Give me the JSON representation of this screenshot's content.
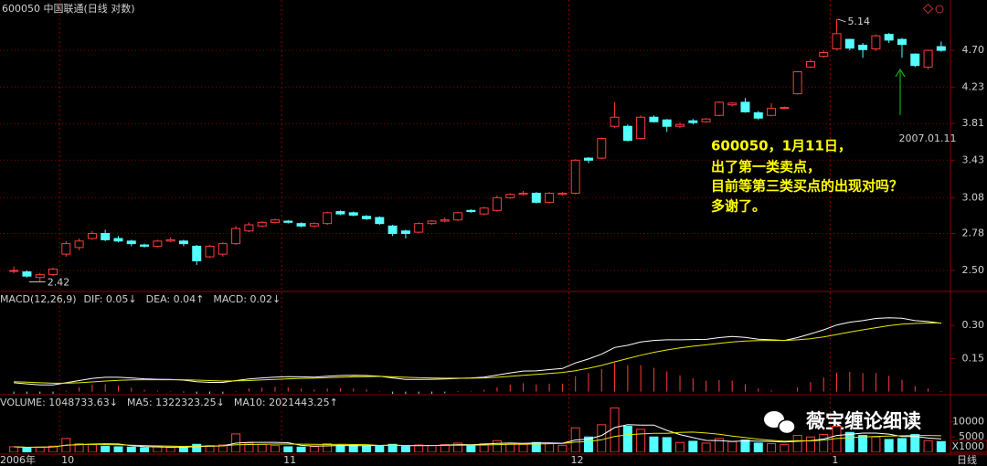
{
  "title": "600050 中国联通(日线 对数)",
  "period_label": "日线",
  "watermark": "薇宝缠论细读",
  "note": [
    "600050，1月11日，",
    "出了第一类卖点，",
    "目前等第三类买点的出现对吗？",
    "多谢了。"
  ],
  "chart_data": [
    {
      "type": "candlestick",
      "log_scale": true,
      "grid": true,
      "up_color": "#ff3c3c",
      "down_color": "#54ffff",
      "categories": [
        "2006年",
        null,
        null,
        null,
        "10",
        null,
        null,
        null,
        null,
        null,
        null,
        null,
        null,
        null,
        null,
        null,
        null,
        null,
        null,
        null,
        null,
        "11",
        null,
        null,
        null,
        null,
        null,
        null,
        null,
        null,
        null,
        null,
        null,
        null,
        null,
        null,
        null,
        null,
        null,
        null,
        null,
        null,
        null,
        "12",
        null,
        null,
        null,
        null,
        null,
        null,
        null,
        null,
        null,
        null,
        null,
        null,
        null,
        null,
        null,
        null,
        null,
        null,
        null,
        "1",
        null,
        null,
        null,
        null,
        null,
        null,
        null,
        null
      ],
      "open": [
        2.5,
        2.49,
        2.45,
        2.47,
        2.62,
        2.67,
        2.74,
        2.78,
        2.74,
        2.72,
        2.69,
        2.68,
        2.72,
        2.72,
        2.68,
        2.6,
        2.62,
        2.7,
        2.8,
        2.84,
        2.87,
        2.88,
        2.86,
        2.84,
        2.86,
        2.96,
        2.95,
        2.92,
        2.91,
        2.84,
        2.8,
        2.79,
        2.86,
        2.88,
        2.89,
        2.97,
        2.94,
        2.97,
        3.08,
        3.11,
        3.12,
        3.04,
        3.11,
        3.12,
        3.45,
        3.45,
        3.78,
        3.78,
        3.65,
        3.88,
        3.85,
        3.78,
        3.84,
        3.83,
        3.9,
        4.02,
        4.05,
        3.93,
        3.9,
        3.98,
        4.15,
        4.48,
        4.62,
        4.72,
        4.85,
        4.77,
        4.72,
        4.92,
        4.85,
        4.65,
        4.48,
        4.75
      ],
      "high": [
        2.53,
        2.5,
        2.48,
        2.52,
        2.72,
        2.74,
        2.8,
        2.81,
        2.76,
        2.73,
        2.7,
        2.73,
        2.75,
        2.73,
        2.69,
        2.69,
        2.71,
        2.84,
        2.87,
        2.88,
        2.9,
        2.89,
        2.87,
        2.87,
        2.96,
        2.97,
        2.96,
        2.93,
        2.92,
        2.85,
        2.81,
        2.87,
        2.89,
        2.91,
        2.96,
        2.98,
        3.0,
        3.1,
        3.12,
        3.14,
        3.13,
        3.13,
        3.13,
        3.44,
        3.46,
        3.66,
        4.05,
        3.8,
        3.9,
        3.9,
        3.86,
        3.82,
        3.86,
        3.87,
        4.06,
        4.05,
        4.1,
        3.95,
        4.04,
        4.0,
        4.43,
        4.58,
        4.7,
        5.14,
        4.86,
        4.8,
        4.92,
        4.94,
        4.87,
        4.66,
        4.71,
        4.82
      ],
      "low": [
        2.48,
        2.45,
        2.42,
        2.46,
        2.6,
        2.65,
        2.73,
        2.72,
        2.71,
        2.68,
        2.67,
        2.67,
        2.71,
        2.68,
        2.54,
        2.59,
        2.6,
        2.69,
        2.79,
        2.83,
        2.86,
        2.86,
        2.83,
        2.83,
        2.85,
        2.93,
        2.92,
        2.89,
        2.85,
        2.76,
        2.74,
        2.78,
        2.85,
        2.87,
        2.88,
        2.95,
        2.93,
        2.96,
        3.07,
        3.1,
        3.03,
        3.03,
        3.1,
        3.11,
        3.4,
        3.44,
        3.76,
        3.62,
        3.64,
        3.82,
        3.72,
        3.76,
        3.8,
        3.82,
        3.89,
        4.0,
        3.93,
        3.85,
        3.89,
        3.97,
        4.14,
        4.47,
        4.6,
        4.7,
        4.7,
        4.6,
        4.69,
        4.8,
        4.6,
        4.48,
        4.45,
        4.68
      ],
      "close": [
        2.5,
        2.46,
        2.47,
        2.51,
        2.7,
        2.72,
        2.78,
        2.73,
        2.72,
        2.7,
        2.68,
        2.72,
        2.73,
        2.7,
        2.57,
        2.68,
        2.7,
        2.82,
        2.85,
        2.87,
        2.89,
        2.87,
        2.84,
        2.86,
        2.95,
        2.94,
        2.93,
        2.9,
        2.86,
        2.78,
        2.78,
        2.86,
        2.88,
        2.89,
        2.95,
        2.96,
        2.99,
        3.08,
        3.11,
        3.12,
        3.04,
        3.12,
        3.12,
        3.43,
        3.43,
        3.65,
        3.88,
        3.63,
        3.88,
        3.83,
        3.78,
        3.8,
        3.82,
        3.86,
        4.05,
        4.04,
        3.94,
        3.87,
        3.98,
        3.99,
        4.42,
        4.55,
        4.67,
        4.93,
        4.73,
        4.71,
        4.9,
        4.84,
        4.78,
        4.5,
        4.7,
        4.7
      ],
      "ylim": [
        2.36,
        5.43
      ],
      "yticks": [
        {
          "value": 2.5,
          "label": "2.50"
        },
        2.78,
        3.08,
        3.43,
        3.81,
        4.23,
        {
          "value": 4.7,
          "label": "4.70"
        }
      ],
      "annotations": [
        {
          "text": "5.14"
        },
        {
          "text": "2.42"
        },
        {
          "text": "2007.01.11",
          "color": "#10d010"
        }
      ]
    },
    {
      "type": "macd",
      "title": "MACD(12,26,9)",
      "ylim": [
        -0.01,
        0.45
      ],
      "yticks": [
        {
          "value": 0.15,
          "label": "0.15"
        },
        {
          "value": 0.3,
          "label": "0.30"
        }
      ],
      "series": [
        {
          "label": "DIF: 0.05↓",
          "color": "#ffffff",
          "values": [
            0.04,
            0.035,
            0.03,
            0.03,
            0.04,
            0.05,
            0.06,
            0.065,
            0.065,
            0.062,
            0.058,
            0.056,
            0.055,
            0.052,
            0.045,
            0.042,
            0.042,
            0.05,
            0.057,
            0.062,
            0.066,
            0.068,
            0.067,
            0.066,
            0.07,
            0.073,
            0.074,
            0.073,
            0.07,
            0.062,
            0.055,
            0.055,
            0.056,
            0.057,
            0.06,
            0.062,
            0.066,
            0.075,
            0.085,
            0.093,
            0.094,
            0.1,
            0.105,
            0.13,
            0.148,
            0.17,
            0.2,
            0.21,
            0.225,
            0.232,
            0.235,
            0.235,
            0.236,
            0.237,
            0.245,
            0.25,
            0.246,
            0.238,
            0.235,
            0.232,
            0.245,
            0.262,
            0.28,
            0.302,
            0.315,
            0.322,
            0.332,
            0.335,
            0.333,
            0.322,
            0.318,
            0.31
          ]
        },
        {
          "label": "DEA: 0.04↑",
          "color": "#e8e800",
          "values": [
            0.045,
            0.043,
            0.04,
            0.038,
            0.038,
            0.04,
            0.044,
            0.048,
            0.051,
            0.053,
            0.054,
            0.054,
            0.054,
            0.054,
            0.052,
            0.05,
            0.048,
            0.049,
            0.05,
            0.053,
            0.055,
            0.058,
            0.06,
            0.061,
            0.063,
            0.065,
            0.067,
            0.068,
            0.069,
            0.067,
            0.065,
            0.063,
            0.062,
            0.061,
            0.061,
            0.061,
            0.062,
            0.065,
            0.069,
            0.074,
            0.078,
            0.082,
            0.087,
            0.095,
            0.106,
            0.119,
            0.135,
            0.15,
            0.165,
            0.178,
            0.189,
            0.198,
            0.206,
            0.212,
            0.219,
            0.225,
            0.229,
            0.231,
            0.232,
            0.232,
            0.235,
            0.24,
            0.248,
            0.259,
            0.27,
            0.28,
            0.29,
            0.299,
            0.306,
            0.309,
            0.311,
            0.311
          ]
        },
        {
          "label": "MACD: 0.02↓",
          "color": "#ff40ff",
          "style": "histogram",
          "values": [
            -0.01,
            -0.016,
            -0.02,
            -0.016,
            0.004,
            0.02,
            0.032,
            0.034,
            0.028,
            0.018,
            0.008,
            0.004,
            0.002,
            -0.004,
            -0.014,
            -0.016,
            -0.012,
            0.002,
            0.014,
            0.018,
            0.022,
            0.02,
            0.014,
            0.01,
            0.014,
            0.016,
            0.014,
            0.01,
            0.002,
            -0.01,
            -0.02,
            -0.016,
            -0.012,
            -0.008,
            -0.002,
            0.002,
            0.008,
            0.02,
            0.032,
            0.038,
            0.032,
            0.036,
            0.036,
            0.07,
            0.084,
            0.102,
            0.13,
            0.12,
            0.12,
            0.108,
            0.092,
            0.074,
            0.06,
            0.05,
            0.052,
            0.05,
            0.034,
            0.014,
            0.006,
            0,
            0.02,
            0.044,
            0.064,
            0.086,
            0.09,
            0.084,
            0.084,
            0.072,
            0.054,
            0.026,
            0.014,
            -0.002
          ]
        }
      ]
    },
    {
      "type": "volume",
      "unit": "X1000",
      "ylim": [
        0,
        18500
      ],
      "yticks": [
        5000,
        10000
      ],
      "series": [
        {
          "label": "VOLUME: 1048733.63↓",
          "color": "#ffffff",
          "style": "bar",
          "values": [
            1800,
            1500,
            1700,
            2000,
            4500,
            2800,
            2500,
            2000,
            1800,
            1700,
            1500,
            1800,
            1600,
            1700,
            2600,
            2200,
            2400,
            6000,
            3000,
            2600,
            2200,
            1800,
            1700,
            1900,
            2800,
            2000,
            2300,
            2100,
            2000,
            2600,
            1900,
            2400,
            2200,
            2500,
            3000,
            2400,
            2800,
            3800,
            3000,
            2600,
            3200,
            3000,
            2300,
            8000,
            5000,
            9000,
            14500,
            8500,
            7500,
            5000,
            4800,
            3200,
            3600,
            3000,
            4500,
            3500,
            4000,
            3000,
            2800,
            2600,
            5500,
            5000,
            5800,
            8500,
            6500,
            5500,
            5000,
            4200,
            4500,
            5800,
            3800,
            3500
          ]
        },
        {
          "label": "MA5: 1322323.25↓",
          "color": "#ffffff",
          "values": [
            1800,
            1650,
            1670,
            1750,
            2300,
            2500,
            2700,
            2760,
            2720,
            2160,
            1880,
            1760,
            1680,
            1660,
            1840,
            1980,
            2100,
            2980,
            3240,
            3240,
            3240,
            3120,
            2260,
            2040,
            2080,
            2240,
            2140,
            2160,
            2240,
            2360,
            2180,
            2200,
            2220,
            2320,
            2520,
            2480,
            2660,
            2900,
            3000,
            2920,
            3080,
            3080,
            2940,
            4020,
            4300,
            5500,
            8100,
            9000,
            8900,
            8900,
            7160,
            5800,
            4800,
            3880,
            3820,
            3560,
            3720,
            3600,
            3560,
            3380,
            3580,
            3780,
            4340,
            5480,
            5860,
            6260,
            6260,
            5940,
            5140,
            5200,
            4660,
            4360
          ]
        },
        {
          "label": "MA10: 2021443.25↑",
          "color": "#e8e800",
          "values": [
            1800,
            1650,
            1670,
            1750,
            2300,
            2500,
            2600,
            2550,
            2450,
            2300,
            2200,
            2100,
            2000,
            1950,
            2000,
            2050,
            2100,
            2450,
            2550,
            2600,
            2700,
            2700,
            2650,
            2600,
            2550,
            2600,
            2550,
            2500,
            2250,
            2300,
            2250,
            2200,
            2250,
            2280,
            2300,
            2350,
            2400,
            2500,
            2600,
            2650,
            2700,
            2800,
            2850,
            3350,
            3500,
            4100,
            5200,
            5700,
            6000,
            6200,
            6200,
            6500,
            6600,
            6300,
            5900,
            5300,
            4800,
            4300,
            3900,
            3600,
            3800,
            3700,
            4000,
            4500,
            4800,
            5000,
            5200,
            5300,
            5400,
            5500,
            5500,
            5400
          ]
        }
      ]
    }
  ]
}
